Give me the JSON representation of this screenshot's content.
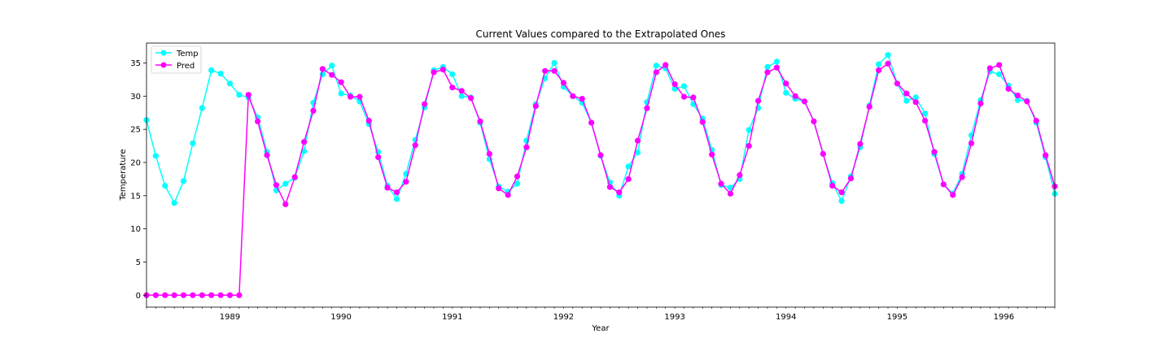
{
  "chart_data": {
    "type": "line",
    "title": "Current Values compared to the Extrapolated Ones",
    "xlabel": "Year",
    "ylabel": "Temperature",
    "x_start": "1988-10",
    "x_end": "1996-12",
    "ylim": [
      -1.8,
      38
    ],
    "yticks": [
      0,
      5,
      10,
      15,
      20,
      25,
      30,
      35
    ],
    "xticks": [
      "1989",
      "1990",
      "1991",
      "1992",
      "1993",
      "1994",
      "1995",
      "1996"
    ],
    "legend": {
      "position": "top-left"
    },
    "grid": false,
    "series": [
      {
        "name": "Temp",
        "color": "#00ffff",
        "values": [
          26.4,
          21.0,
          16.5,
          13.9,
          17.2,
          22.9,
          28.2,
          33.9,
          33.4,
          31.9,
          30.2,
          29.8,
          26.8,
          21.6,
          15.8,
          16.8,
          17.7,
          21.7,
          29.0,
          33.3,
          34.6,
          30.4,
          30.1,
          29.2,
          25.8,
          21.6,
          16.5,
          14.5,
          18.3,
          23.4,
          28.3,
          33.9,
          34.4,
          33.3,
          30.0,
          29.8,
          26.0,
          20.5,
          16.4,
          15.6,
          16.8,
          23.3,
          28.8,
          32.7,
          35.0,
          31.4,
          30.0,
          29.0,
          26.0,
          21.0,
          17.0,
          15.0,
          19.4,
          21.5,
          29.1,
          34.6,
          34.2,
          31.1,
          31.5,
          28.8,
          26.6,
          21.9,
          16.6,
          16.2,
          17.5,
          24.9,
          28.2,
          34.4,
          35.2,
          30.5,
          29.6,
          29.2,
          26.2,
          21.3,
          16.9,
          14.2,
          17.9,
          22.3,
          28.6,
          34.8,
          36.2,
          31.9,
          29.3,
          29.8,
          27.4,
          21.3,
          16.7,
          15.3,
          18.3,
          24.1,
          29.4,
          33.7,
          33.3,
          31.6,
          29.4,
          29.3,
          26.0,
          20.8,
          15.3
        ]
      },
      {
        "name": "Pred",
        "color": "#ff00ff",
        "values": [
          0,
          0,
          0,
          0,
          0,
          0,
          0,
          0,
          0,
          0,
          0,
          30.2,
          26.2,
          21.1,
          16.6,
          13.7,
          17.8,
          23.1,
          27.8,
          34.1,
          33.2,
          32.1,
          29.9,
          29.9,
          26.3,
          20.8,
          16.2,
          15.5,
          17.1,
          22.6,
          28.8,
          33.6,
          34.0,
          31.3,
          30.8,
          29.7,
          26.2,
          21.3,
          16.1,
          15.1,
          17.9,
          22.3,
          28.5,
          33.8,
          33.8,
          32.0,
          30.0,
          29.6,
          26.0,
          21.1,
          16.3,
          15.5,
          17.5,
          23.3,
          28.2,
          33.6,
          34.7,
          31.8,
          29.9,
          29.8,
          26.1,
          21.2,
          16.8,
          15.3,
          18.1,
          22.5,
          29.3,
          33.6,
          34.3,
          31.9,
          30.0,
          29.2,
          26.2,
          21.3,
          16.5,
          15.5,
          17.6,
          22.8,
          28.4,
          33.9,
          34.9,
          31.9,
          30.4,
          29.1,
          26.3,
          21.6,
          16.7,
          15.1,
          17.8,
          22.9,
          28.9,
          34.2,
          34.7,
          31.1,
          30.1,
          29.2,
          26.3,
          21.1,
          16.4
        ]
      }
    ]
  }
}
